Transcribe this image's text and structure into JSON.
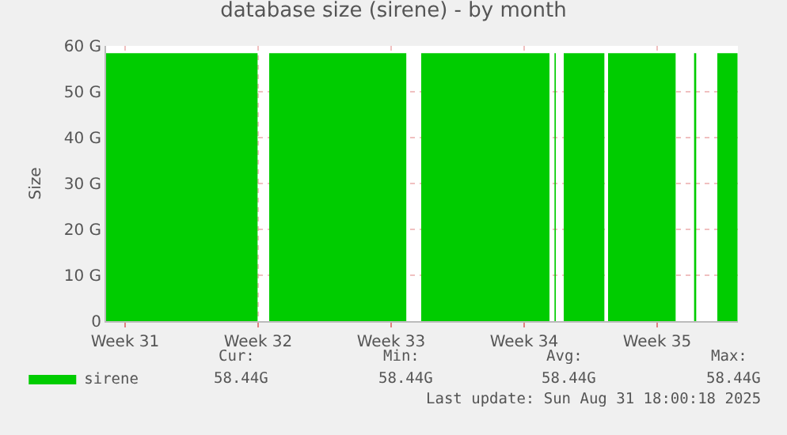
{
  "chart_data": {
    "type": "area",
    "title": "database size (sirene) - by month",
    "ylabel": "Size",
    "series": [
      {
        "name": "sirene",
        "color": "#00cc00",
        "x": [
          "2025-07-29T12:00",
          "2025-08-06T11:20",
          "2025-08-06T18:00",
          "2025-08-07T02:00",
          "2025-08-14T07:10",
          "2025-08-14T16:00",
          "2025-08-15T02:00",
          "2025-08-21T20:00",
          "2025-08-21T23:00",
          "2025-08-22T02:20",
          "2025-08-22T04:00",
          "2025-08-22T09:00",
          "2025-08-22T14:00",
          "2025-08-24T17:20",
          "2025-08-24T19:40",
          "2025-08-24T22:00",
          "2025-08-28T11:20",
          "2025-08-28T23:00",
          "2025-08-29T10:40",
          "2025-08-29T13:20",
          "2025-08-30T02:00",
          "2025-08-30T16:00",
          "2025-08-31T17:30"
        ],
        "values": [
          58.4,
          58.4,
          null,
          58.4,
          58.4,
          null,
          58.4,
          58.4,
          null,
          58.4,
          58.4,
          null,
          58.4,
          58.4,
          null,
          58.4,
          58.4,
          null,
          58.4,
          58.4,
          null,
          58.4,
          58.4
        ]
      }
    ],
    "xlim": [
      "2025-07-29T12:00",
      "2025-08-31T18:00"
    ],
    "xticks": [
      {
        "value": "2025-07-30T12:00",
        "label": "Week 31"
      },
      {
        "value": "2025-08-06T12:00",
        "label": "Week 32"
      },
      {
        "value": "2025-08-13T12:00",
        "label": "Week 33"
      },
      {
        "value": "2025-08-20T12:00",
        "label": "Week 34"
      },
      {
        "value": "2025-08-27T12:00",
        "label": "Week 35"
      }
    ],
    "ylim": [
      0,
      60
    ],
    "yticks": [
      0,
      {
        "value": 10,
        "label": "10 G"
      },
      {
        "value": 20,
        "label": "20 G"
      },
      {
        "value": 30,
        "label": "30 G"
      },
      {
        "value": 40,
        "label": "40 G"
      },
      {
        "value": 50,
        "label": "50 G"
      },
      {
        "value": 60,
        "label": "60 G"
      }
    ],
    "grid": true,
    "legend": "bottom left",
    "annotations": [
      "Cur:",
      "Min:",
      "Avg:",
      "Max:",
      "58.44G",
      "58.44G",
      "58.44G",
      "58.44G",
      "Last update: Sun Aug 31 18:00:18 2025"
    ]
  }
}
